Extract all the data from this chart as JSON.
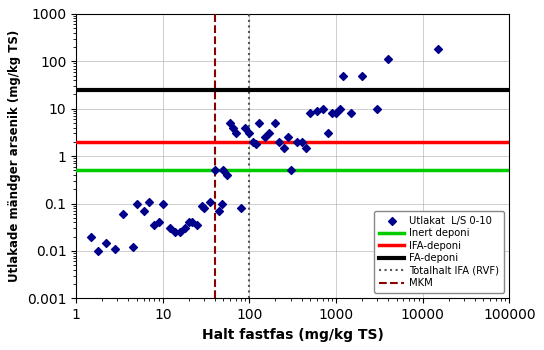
{
  "title": "",
  "xlabel": "Halt fastfas (mg/kg TS)",
  "ylabel": "Utlakade mändger arsenik (mg/kg TS)",
  "xlim": [
    1,
    100000
  ],
  "ylim": [
    0.001,
    1000
  ],
  "scatter_x": [
    1.5,
    1.8,
    2.2,
    2.8,
    3.5,
    4.5,
    5,
    6,
    7,
    8,
    9,
    10,
    12,
    14,
    16,
    18,
    20,
    22,
    25,
    28,
    30,
    35,
    40,
    45,
    48,
    50,
    55,
    60,
    65,
    70,
    80,
    90,
    100,
    110,
    120,
    130,
    150,
    170,
    200,
    220,
    250,
    280,
    300,
    350,
    400,
    450,
    500,
    600,
    700,
    800,
    900,
    1000,
    1100,
    1200,
    1500,
    2000,
    3000,
    4000,
    15000
  ],
  "scatter_y": [
    0.02,
    0.01,
    0.015,
    0.011,
    0.06,
    0.012,
    0.1,
    0.07,
    0.11,
    0.035,
    0.04,
    0.1,
    0.03,
    0.025,
    0.025,
    0.03,
    0.04,
    0.04,
    0.035,
    0.09,
    0.08,
    0.11,
    0.5,
    0.07,
    0.1,
    0.5,
    0.4,
    5.0,
    4.0,
    3.0,
    0.08,
    4.0,
    3.0,
    2.0,
    1.8,
    5.0,
    2.5,
    3.0,
    5.0,
    2.0,
    1.5,
    2.5,
    0.5,
    2.0,
    2.0,
    1.5,
    8.0,
    9.0,
    10.0,
    3.0,
    8.0,
    8.0,
    10.0,
    50.0,
    8.0,
    50.0,
    10.0,
    110.0,
    180.0
  ],
  "line_inert_y": 0.5,
  "line_ifa_y": 2.0,
  "line_fa_y": 25.0,
  "vline_mkm_x": 40,
  "vline_totalhalt_x": 100,
  "scatter_color": "#00008B",
  "inert_color": "#00cc00",
  "ifa_color": "#ff0000",
  "fa_color": "#000000",
  "mkm_color": "#8b0000",
  "totalhalt_color": "#555555",
  "legend_labels": [
    "Utlakat  L/S 0-10",
    "Inert deponi",
    "IFA-deponi",
    "FA-deponi",
    "Totalhalt IFA (RVF)",
    "MKM"
  ]
}
